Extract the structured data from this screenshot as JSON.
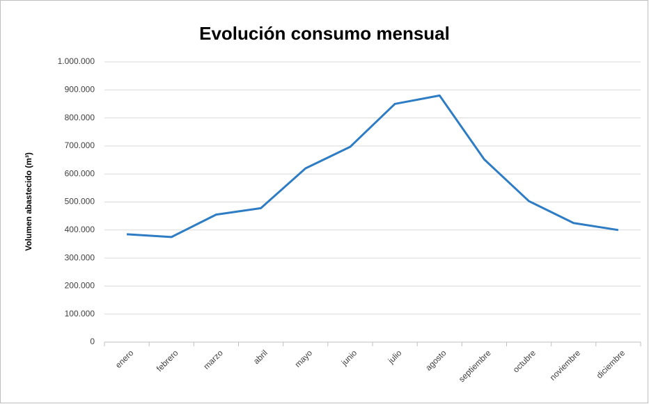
{
  "chart_data": {
    "type": "line",
    "title": "Evolución consumo mensual",
    "y_label": "Volumen abastecido (m³)",
    "categories": [
      "enero",
      "febrero",
      "marzo",
      "abril",
      "mayo",
      "junio",
      "julio",
      "agosto",
      "septiembre",
      "octubre",
      "noviembre",
      "diciembre"
    ],
    "series": [
      {
        "name": "Volumen abastecido",
        "color": "#2e7cc4",
        "values": [
          385000,
          375000,
          455000,
          478000,
          620000,
          697000,
          850000,
          880000,
          652000,
          503000,
          425000,
          400000
        ]
      }
    ],
    "ylim": [
      0,
      1000000
    ],
    "yticks": [
      0,
      {
        "value": 100000,
        "label": "100.000"
      },
      {
        "value": 200000,
        "label": "200.000"
      },
      {
        "value": 300000,
        "label": "300.000"
      },
      {
        "value": 400000,
        "label": "400.000"
      },
      {
        "value": 500000,
        "label": "500.000"
      },
      {
        "value": 600000,
        "label": "600.000"
      },
      {
        "value": 700000,
        "label": "700.000"
      },
      {
        "value": 800000,
        "label": "800.000"
      },
      {
        "value": 900000,
        "label": "900.000"
      },
      {
        "value": 1000000,
        "label": "1.000.000"
      }
    ],
    "grid": true
  }
}
